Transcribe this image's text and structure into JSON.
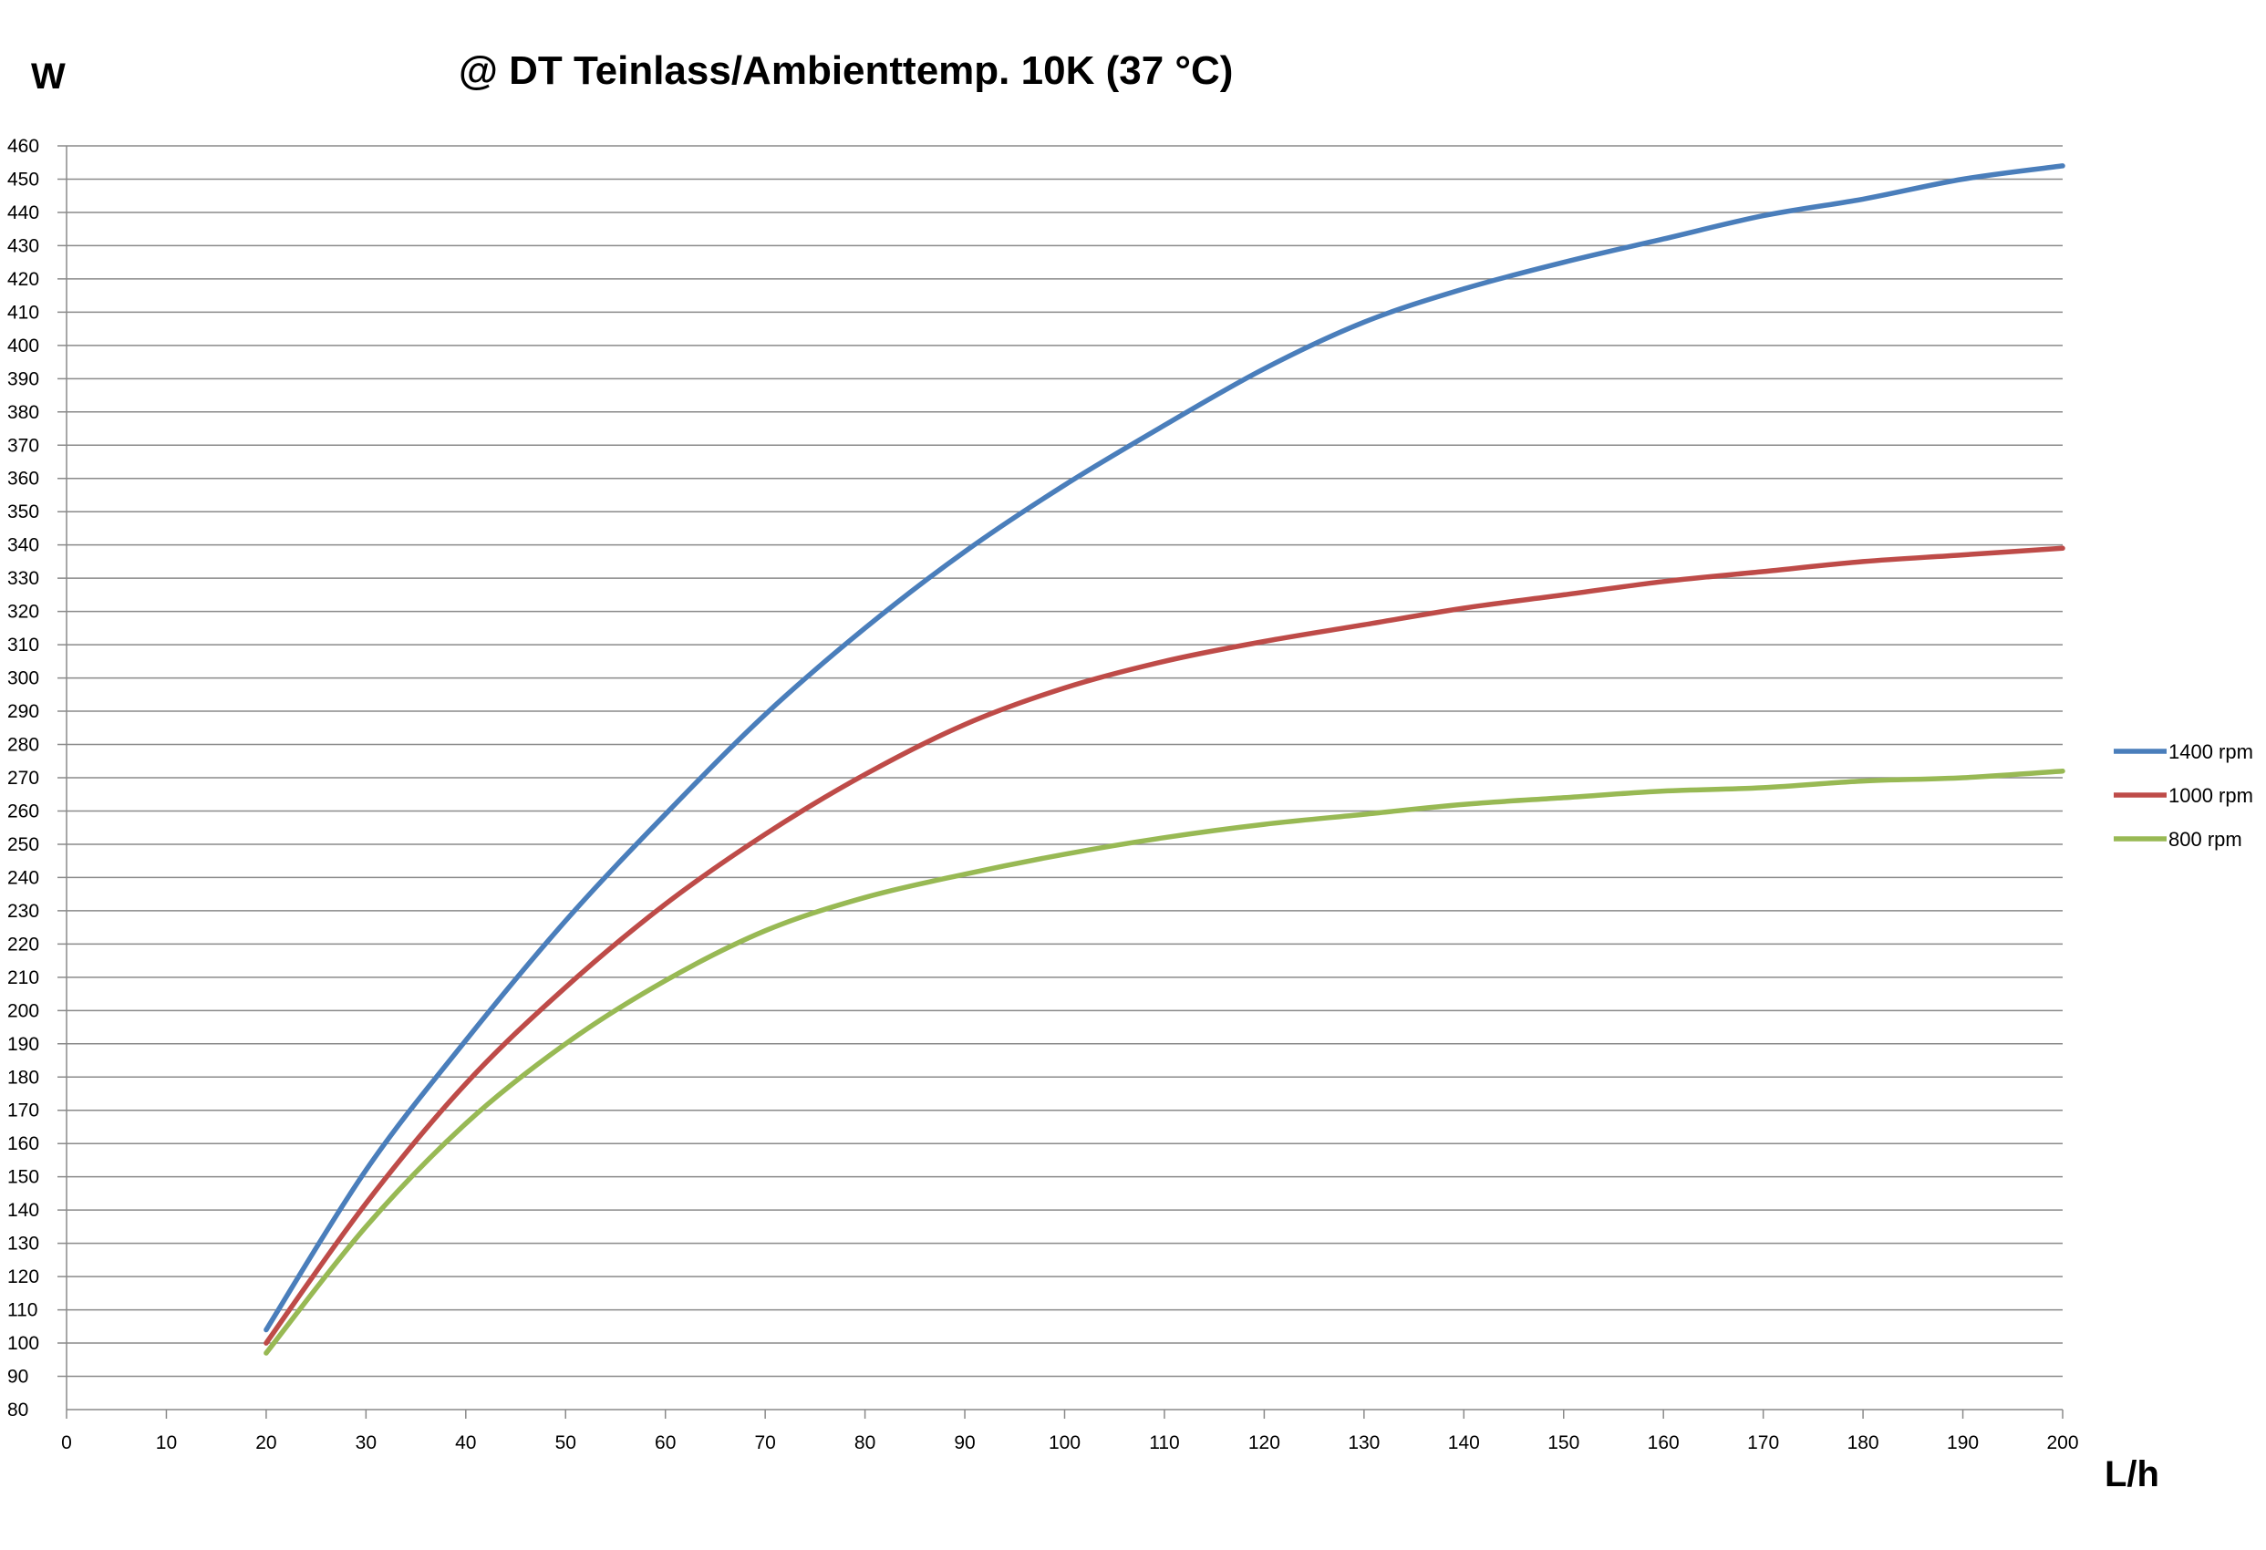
{
  "chart_data": {
    "type": "line",
    "title": "@ DT Teinlass/Ambienttemp. 10K (37 °C)",
    "ylabel": "W",
    "xlabel": "L/h",
    "xlim": [
      0,
      200
    ],
    "ylim": [
      80,
      460
    ],
    "x_ticks": [
      0,
      10,
      20,
      30,
      40,
      50,
      60,
      70,
      80,
      90,
      100,
      110,
      120,
      130,
      140,
      150,
      160,
      170,
      180,
      190,
      200
    ],
    "y_ticks": [
      80,
      90,
      100,
      110,
      120,
      130,
      140,
      150,
      160,
      170,
      180,
      190,
      200,
      210,
      220,
      230,
      240,
      250,
      260,
      270,
      280,
      290,
      300,
      310,
      320,
      330,
      340,
      350,
      360,
      370,
      380,
      390,
      400,
      410,
      420,
      430,
      440,
      450,
      460
    ],
    "grid": "horizontal",
    "legend_position": "right",
    "x": [
      20,
      30,
      40,
      50,
      60,
      70,
      80,
      90,
      100,
      110,
      120,
      130,
      140,
      150,
      160,
      170,
      180,
      190,
      200
    ],
    "series": [
      {
        "name": "1400 rpm",
        "color": "#4a7ebb",
        "values": [
          104,
          152,
          191,
          227,
          259,
          289,
          315,
          338,
          358,
          376,
          393,
          407,
          417,
          425,
          432,
          439,
          444,
          450,
          454
        ]
      },
      {
        "name": "1000 rpm",
        "color": "#be4b48",
        "values": [
          100,
          142,
          178,
          207,
          232,
          253,
          271,
          286,
          297,
          305,
          311,
          316,
          321,
          325,
          329,
          332,
          335,
          337,
          339
        ]
      },
      {
        "name": "800 rpm",
        "color": "#98b954",
        "values": [
          97,
          135,
          166,
          190,
          209,
          224,
          234,
          241,
          247,
          252,
          256,
          259,
          262,
          264,
          266,
          267,
          269,
          270,
          272
        ]
      }
    ]
  }
}
